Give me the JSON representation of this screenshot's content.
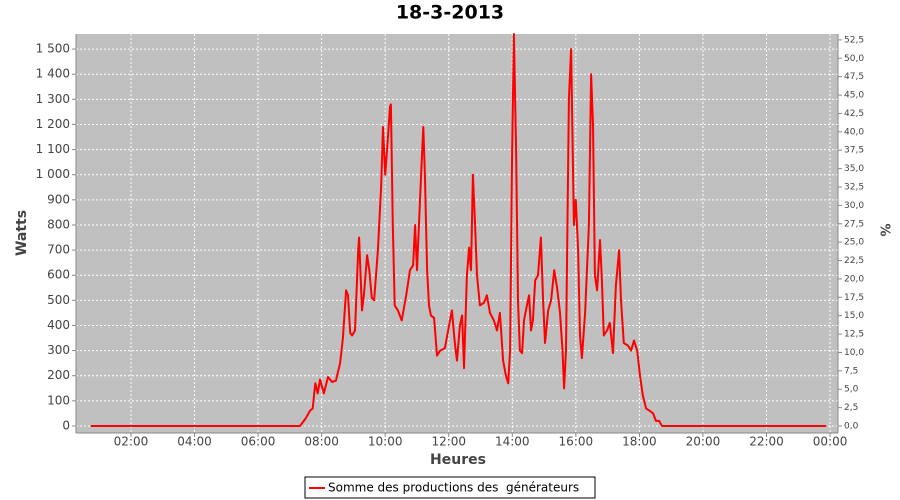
{
  "chart_data": {
    "type": "line",
    "title": "18-3-2013",
    "x_label": "Heures",
    "y_label": "Watts",
    "y2_label": "%",
    "xlim": [
      0.27,
      24.25
    ],
    "xticks": [
      {
        "value": 2,
        "label": "02:00"
      },
      {
        "value": 4,
        "label": "04:00"
      },
      {
        "value": 6,
        "label": "06:00"
      },
      {
        "value": 8,
        "label": "08:00"
      },
      {
        "value": 10,
        "label": "10:00"
      },
      {
        "value": 12,
        "label": "12:00"
      },
      {
        "value": 14,
        "label": "14:00"
      },
      {
        "value": 16,
        "label": "16:00"
      },
      {
        "value": 18,
        "label": "18:00"
      },
      {
        "value": 20,
        "label": "20:00"
      },
      {
        "value": 22,
        "label": "22:00"
      },
      {
        "value": 24,
        "label": "00:00"
      }
    ],
    "ylim": [
      -28,
      1560
    ],
    "yticks": [
      0,
      100,
      200,
      300,
      400,
      500,
      600,
      700,
      800,
      900,
      {
        "value": 1000,
        "label": "1 000"
      },
      {
        "value": 1100,
        "label": "1 100"
      },
      {
        "value": 1200,
        "label": "1 200"
      },
      {
        "value": 1300,
        "label": "1 300"
      },
      {
        "value": 1400,
        "label": "1 400"
      },
      {
        "value": 1500,
        "label": "1 500"
      }
    ],
    "y2lim": [
      -0.95,
      53.3
    ],
    "y2ticks": [
      {
        "value": 0,
        "label": "0,0"
      },
      {
        "value": 2.5,
        "label": "2,5"
      },
      {
        "value": 5,
        "label": "5,0"
      },
      {
        "value": 7.5,
        "label": "7,5"
      },
      {
        "value": 10,
        "label": "10,0"
      },
      {
        "value": 12.5,
        "label": "12,5"
      },
      {
        "value": 15,
        "label": "15,0"
      },
      {
        "value": 17.5,
        "label": "17,5"
      },
      {
        "value": 20,
        "label": "20,0"
      },
      {
        "value": 22.5,
        "label": "22,5"
      },
      {
        "value": 25,
        "label": "25,0"
      },
      {
        "value": 27.5,
        "label": "27,5"
      },
      {
        "value": 30,
        "label": "30,0"
      },
      {
        "value": 32.5,
        "label": "32,5"
      },
      {
        "value": 35,
        "label": "35,0"
      },
      {
        "value": 37.5,
        "label": "37,5"
      },
      {
        "value": 40,
        "label": "40,0"
      },
      {
        "value": 42.5,
        "label": "42,5"
      },
      {
        "value": 45,
        "label": "45,0"
      },
      {
        "value": 47.5,
        "label": "47,5"
      },
      {
        "value": 50,
        "label": "50,0"
      },
      {
        "value": 52.5,
        "label": "52,5"
      }
    ],
    "grid": true,
    "series": [
      {
        "name": "Somme des productions des  générateurs",
        "color": "#ff0000",
        "x": [
          0.74,
          7.32,
          7.5,
          7.63,
          7.72,
          7.8,
          7.88,
          7.95,
          8.07,
          8.2,
          8.33,
          8.45,
          8.58,
          8.67,
          8.77,
          8.83,
          8.9,
          8.96,
          9.05,
          9.15,
          9.18,
          9.27,
          9.33,
          9.43,
          9.5,
          9.58,
          9.65,
          9.77,
          9.87,
          9.93,
          10.0,
          10.06,
          10.15,
          10.18,
          10.24,
          10.3,
          10.4,
          10.52,
          10.66,
          10.78,
          10.88,
          10.94,
          11.0,
          11.13,
          11.2,
          11.25,
          11.32,
          11.38,
          11.44,
          11.54,
          11.63,
          11.73,
          11.88,
          11.98,
          12.1,
          12.2,
          12.26,
          12.35,
          12.42,
          12.48,
          12.57,
          12.64,
          12.7,
          12.76,
          12.83,
          12.89,
          12.98,
          13.11,
          13.2,
          13.3,
          13.42,
          13.52,
          13.61,
          13.71,
          13.8,
          13.87,
          13.93,
          13.99,
          14.05,
          14.12,
          14.18,
          14.24,
          14.31,
          14.37,
          14.46,
          14.53,
          14.59,
          14.65,
          14.72,
          14.81,
          14.9,
          14.97,
          15.03,
          15.13,
          15.22,
          15.32,
          15.41,
          15.5,
          15.58,
          15.63,
          15.69,
          15.78,
          15.85,
          15.94,
          16.0,
          16.07,
          16.13,
          16.19,
          16.29,
          16.41,
          16.48,
          16.54,
          16.6,
          16.67,
          16.76,
          16.82,
          16.88,
          16.98,
          17.07,
          17.17,
          17.26,
          17.36,
          17.42,
          17.51,
          17.64,
          17.74,
          17.83,
          17.93,
          18.02,
          18.11,
          18.21,
          18.33,
          18.43,
          18.52,
          18.62,
          18.71,
          23.88
        ],
        "values": [
          0,
          0,
          30,
          60,
          70,
          170,
          130,
          185,
          130,
          195,
          175,
          180,
          250,
          350,
          540,
          520,
          370,
          360,
          380,
          700,
          750,
          460,
          520,
          680,
          620,
          510,
          500,
          700,
          950,
          1190,
          1000,
          1100,
          1270,
          1280,
          800,
          480,
          460,
          420,
          520,
          620,
          640,
          800,
          620,
          1000,
          1190,
          1000,
          620,
          480,
          440,
          430,
          280,
          300,
          310,
          380,
          460,
          320,
          260,
          400,
          440,
          230,
          600,
          710,
          620,
          1000,
          800,
          600,
          480,
          490,
          520,
          450,
          420,
          380,
          450,
          260,
          200,
          170,
          300,
          1050,
          1560,
          1100,
          500,
          300,
          290,
          420,
          480,
          520,
          380,
          420,
          580,
          600,
          750,
          500,
          330,
          460,
          500,
          620,
          550,
          450,
          300,
          150,
          300,
          1300,
          1500,
          800,
          900,
          700,
          360,
          270,
          450,
          800,
          1400,
          1200,
          600,
          540,
          740,
          580,
          360,
          380,
          410,
          290,
          560,
          700,
          500,
          330,
          320,
          300,
          340,
          300,
          200,
          120,
          70,
          60,
          50,
          20,
          20,
          0,
          0
        ]
      }
    ]
  }
}
